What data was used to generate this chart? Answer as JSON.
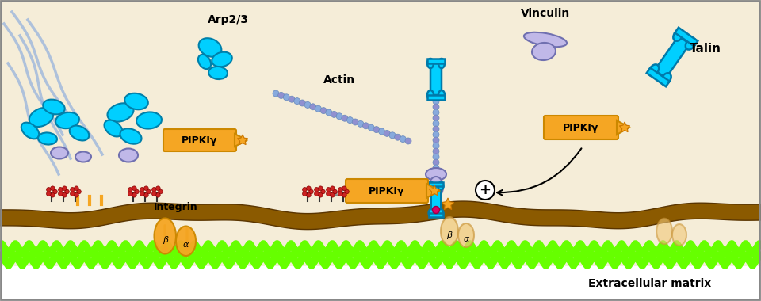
{
  "bg_color": "#f5edd8",
  "membrane_color": "#8B5A00",
  "membrane_outline": "#5a3500",
  "ecm_color": "#66ff00",
  "below_membrane_color": "#ffffff",
  "integrin_color": "#f5a623",
  "integrin_outline": "#cc8800",
  "pipki_box_color": "#f5a623",
  "pipki_box_outline": "#cc8800",
  "pipki_text": "PIPKIγ",
  "actin_label": "Actin",
  "arp_label": "Arp2/3",
  "vinculin_label": "Vinculin",
  "talin_label": "Talin",
  "integrin_label": "Integrin",
  "ecm_label": "Extracellular matrix",
  "cyan_color": "#00cfff",
  "dark_cyan": "#009fdf",
  "light_blue": "#88aadd",
  "purple_color": "#9090d0",
  "light_purple": "#c0b8e8",
  "red_color": "#cc2222",
  "magenta_color": "#dd0066",
  "star_color": "#f5a623",
  "arrow_color": "#333333",
  "border_color": "#888888",
  "figsize": [
    9.6,
    3.8
  ],
  "dpi": 100
}
